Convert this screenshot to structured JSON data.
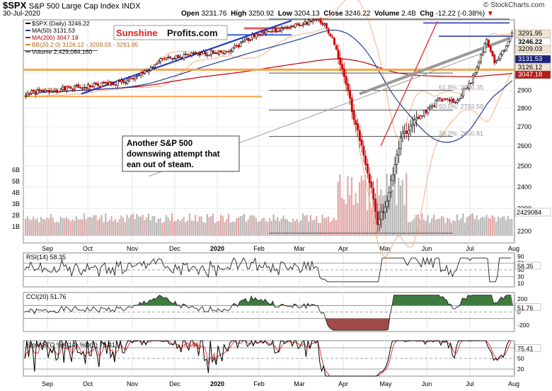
{
  "header": {
    "symbol": "$SPX",
    "name": "S&P 500 Large Cap Index",
    "exchange": "INDX",
    "date": "30-Jul-2020",
    "open_label": "Open",
    "open": "3231.76",
    "high_label": "High",
    "high": "3250.92",
    "low_label": "Low",
    "low": "3204.13",
    "close_label": "Close",
    "close": "3246.22",
    "volume_label": "Volume",
    "volume": "2.4B",
    "chg_label": "Chg",
    "chg": "-12.22 (-0.38%)",
    "brand": "© StockCharts.com"
  },
  "legend": {
    "price": "$SPX (Daily) 3246.22",
    "ma50": "MA(50) 3131.53",
    "ma200": "MA(200) 3047.18",
    "bb": "BB(20,2.0) 3126.12 - 3209.03 - 3291.95",
    "volume": "Volume 2,429,084,160"
  },
  "logo": {
    "part1": "Sunshine",
    "part2": "Profits.com"
  },
  "annotation": {
    "line1": "Another S&P 500",
    "line2": "downswing attempt that",
    "line3": "ean out of steam."
  },
  "fib_labels": {
    "f618": "61.8%: 2636.35",
    "f50": "50.0%: 2793.58",
    "f382": "38.2%: 2650.81",
    "f0": "0.0%: 2191.86"
  },
  "price_axis_labels": [
    {
      "v": 3000,
      "t": "3000"
    },
    {
      "v": 2900,
      "t": "2900"
    },
    {
      "v": 2800,
      "t": "2800"
    },
    {
      "v": 2700,
      "t": "2700"
    },
    {
      "v": 2600,
      "t": "2600"
    },
    {
      "v": 2500,
      "t": "2500"
    },
    {
      "v": 2400,
      "t": "2400"
    },
    {
      "v": 2300,
      "t": "2300"
    },
    {
      "v": 2200,
      "t": "2200"
    }
  ],
  "price_tags": [
    {
      "v": 3291.95,
      "t": "3291.95",
      "color": "#f2e4d0",
      "fg": "#000"
    },
    {
      "v": 3246.22,
      "t": "3246.22",
      "color": "#ffffff",
      "fg": "#000",
      "bold": true
    },
    {
      "v": 3209.03,
      "t": "3209.03",
      "color": "#f2e4d0",
      "fg": "#000"
    },
    {
      "v": 3131.53,
      "t": "3131.53",
      "color": "#1a237e",
      "fg": "#fff"
    },
    {
      "v": 3126.12,
      "t": "3126.12",
      "color": "#f2e4d0",
      "fg": "#000"
    },
    {
      "v": 3047.18,
      "t": "3047.18",
      "color": "#b71c1c",
      "fg": "#fff"
    }
  ],
  "volume_axis_labels": [
    "6B",
    "5B",
    "4B",
    "3B",
    "2B",
    "1B"
  ],
  "volume_tag": "2429084",
  "months": [
    "Sep",
    "Oct",
    "Nov",
    "Dec",
    "2020",
    "Feb",
    "Mar",
    "Apr",
    "May",
    "Jun",
    "Jul",
    "Aug"
  ],
  "rsi": {
    "label": "RSI(14) 58.35",
    "ticks": [
      "90",
      "70",
      "50",
      "30",
      "10"
    ],
    "tag": "58.35"
  },
  "cci": {
    "label": "CCI(20) 51.76",
    "ticks": [
      "200",
      "0",
      "-200"
    ],
    "tag": "51.76"
  },
  "sto": {
    "label": "Slow STO %K(14) %D(3) 75.41,",
    "label2": "72.06",
    "ticks": [
      "80",
      "50",
      "20"
    ],
    "tag": "75.41"
  },
  "chart_data": {
    "type": "candlestick",
    "title": "$SPX S&P 500 Large Cap Index",
    "period": "Aug 2019 - Jul 2020 (daily)",
    "ylim": [
      2150,
      3330
    ],
    "milestones": [
      {
        "month": "Sep",
        "close": 2905
      },
      {
        "month": "Oct",
        "close": 2950
      },
      {
        "month": "Nov",
        "close": 3085
      },
      {
        "month": "Dec",
        "close": 3140
      },
      {
        "month": "2020",
        "close": 3240
      },
      {
        "month": "Feb",
        "close": 3320
      },
      {
        "month": "Feb-low",
        "close": 3200
      },
      {
        "month": "Mar-low",
        "close": 2192
      },
      {
        "month": "Apr",
        "close": 2800
      },
      {
        "month": "May",
        "close": 2890
      },
      {
        "month": "Jun",
        "close": 3200
      },
      {
        "month": "Jul",
        "close": 3150
      },
      {
        "month": "Jul-30",
        "close": 3246
      }
    ],
    "last": {
      "open": 3231.76,
      "high": 3250.92,
      "low": 3204.13,
      "close": 3246.22
    },
    "indicators": {
      "ma50": 3131.53,
      "ma200": 3047.18,
      "bb_lower": 3126.12,
      "bb_mid": 3209.03,
      "bb_upper": 3291.95,
      "rsi14": 58.35,
      "cci20": 51.76,
      "sto_k": 75.41,
      "sto_d": 72.06
    },
    "fibonacci": {
      "61.8%": 2636.35,
      "50.0%": 2793.58,
      "38.2%": 2650.81,
      "0.0%": 2191.86
    },
    "volume_last": 2429084160
  }
}
